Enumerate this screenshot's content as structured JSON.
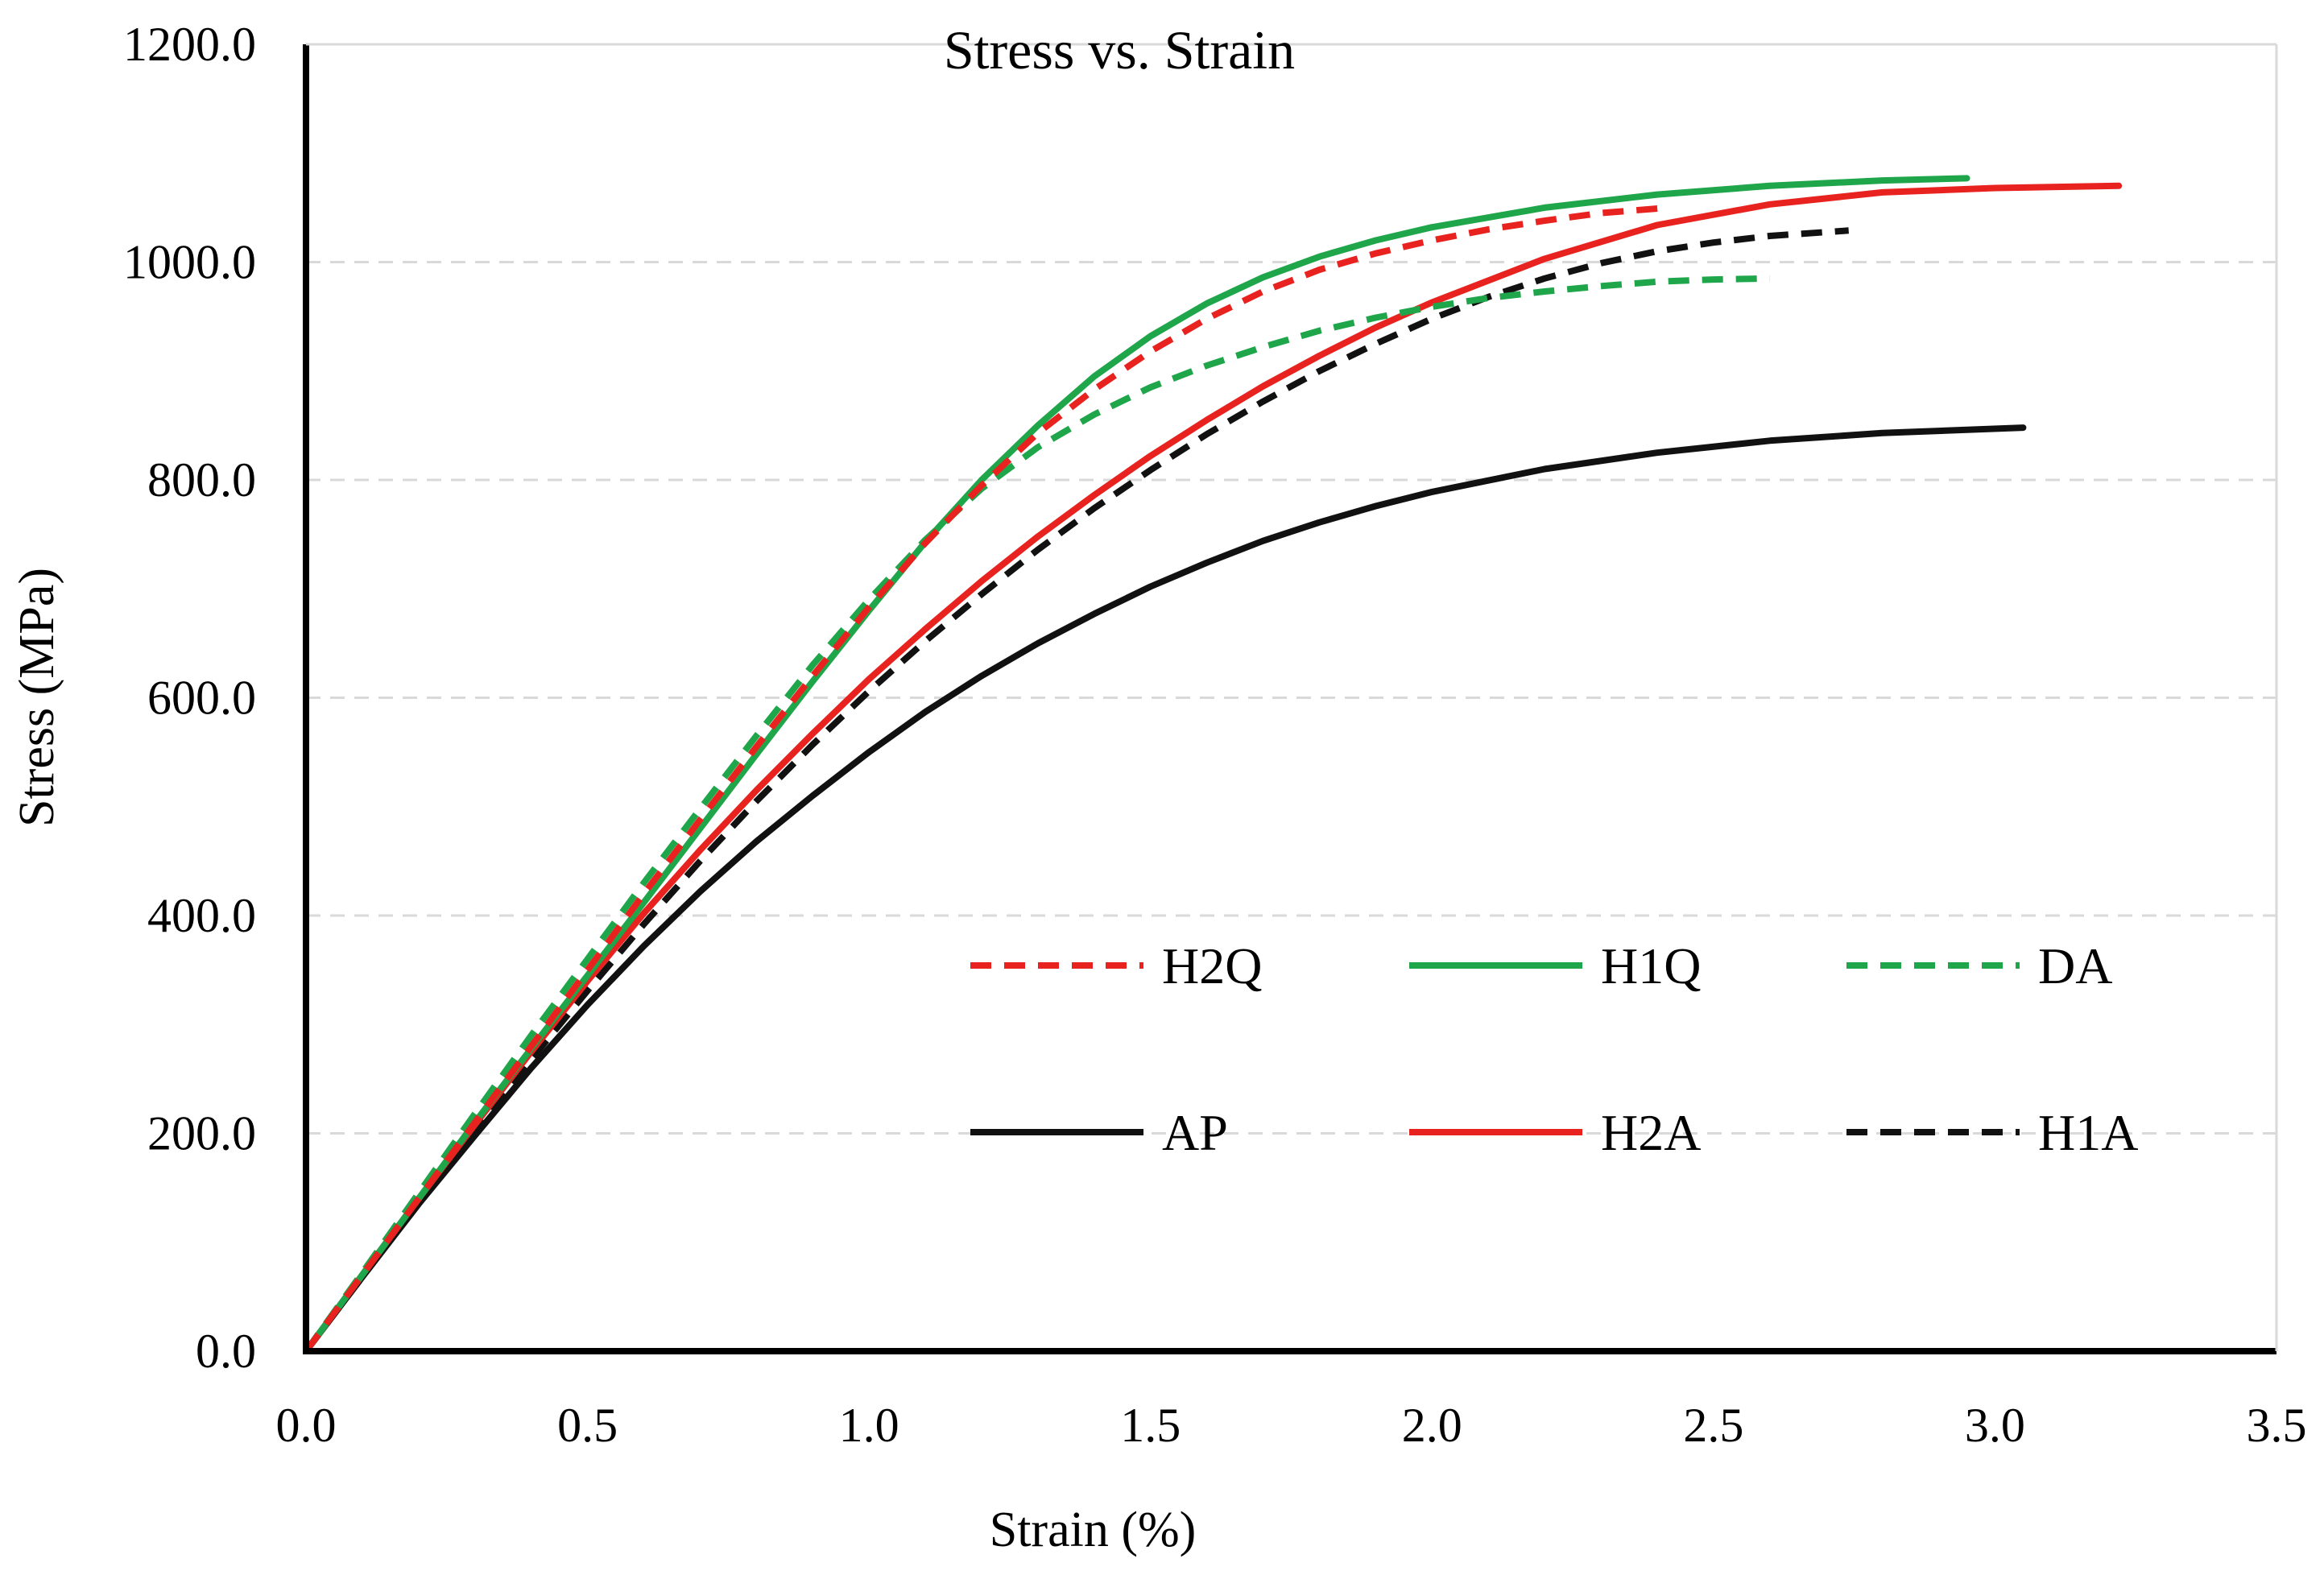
{
  "chart_data": {
    "type": "line",
    "title": "Stress vs. Strain",
    "xlabel": "Strain (%)",
    "ylabel": "Stress (MPa)",
    "xlim": [
      0.0,
      3.5
    ],
    "ylim": [
      0.0,
      1200.0
    ],
    "x_ticks": [
      "0.0",
      "0.5",
      "1.0",
      "1.5",
      "2.0",
      "2.5",
      "3.0",
      "3.5"
    ],
    "y_ticks": [
      "0.0",
      "200.0",
      "400.0",
      "600.0",
      "800.0",
      "1000.0",
      "1200.0"
    ],
    "grid": "horizontal dashed",
    "legend_position": "center-right",
    "series": [
      {
        "name": "H2Q",
        "color": "#e8231f",
        "style": "dashed",
        "points": [
          [
            0,
            0
          ],
          [
            0.1,
            70
          ],
          [
            0.2,
            140
          ],
          [
            0.3,
            210
          ],
          [
            0.4,
            280
          ],
          [
            0.5,
            350
          ],
          [
            0.6,
            420
          ],
          [
            0.7,
            488
          ],
          [
            0.8,
            555
          ],
          [
            0.9,
            620
          ],
          [
            1.0,
            683
          ],
          [
            1.1,
            742
          ],
          [
            1.2,
            795
          ],
          [
            1.3,
            843
          ],
          [
            1.4,
            883
          ],
          [
            1.5,
            918
          ],
          [
            1.6,
            948
          ],
          [
            1.7,
            973
          ],
          [
            1.8,
            993
          ],
          [
            1.9,
            1008
          ],
          [
            2.0,
            1020
          ],
          [
            2.1,
            1030
          ],
          [
            2.2,
            1038
          ],
          [
            2.3,
            1045
          ],
          [
            2.42,
            1050
          ]
        ]
      },
      {
        "name": "H1Q",
        "color": "#1fa64a",
        "style": "solid",
        "points": [
          [
            0,
            0
          ],
          [
            0.1,
            70
          ],
          [
            0.2,
            140
          ],
          [
            0.3,
            210
          ],
          [
            0.4,
            278
          ],
          [
            0.5,
            345
          ],
          [
            0.6,
            412
          ],
          [
            0.7,
            480
          ],
          [
            0.8,
            548
          ],
          [
            0.9,
            615
          ],
          [
            1.0,
            680
          ],
          [
            1.1,
            743
          ],
          [
            1.2,
            800
          ],
          [
            1.3,
            850
          ],
          [
            1.4,
            895
          ],
          [
            1.5,
            932
          ],
          [
            1.6,
            962
          ],
          [
            1.7,
            986
          ],
          [
            1.8,
            1005
          ],
          [
            1.9,
            1020
          ],
          [
            2.0,
            1032
          ],
          [
            2.2,
            1050
          ],
          [
            2.4,
            1062
          ],
          [
            2.6,
            1070
          ],
          [
            2.8,
            1075
          ],
          [
            2.95,
            1077
          ]
        ]
      },
      {
        "name": "DA",
        "color": "#1fa64a",
        "style": "dashed",
        "points": [
          [
            0,
            0
          ],
          [
            0.1,
            72
          ],
          [
            0.2,
            145
          ],
          [
            0.3,
            218
          ],
          [
            0.4,
            290
          ],
          [
            0.5,
            360
          ],
          [
            0.6,
            430
          ],
          [
            0.7,
            498
          ],
          [
            0.8,
            565
          ],
          [
            0.9,
            630
          ],
          [
            1.0,
            690
          ],
          [
            1.1,
            745
          ],
          [
            1.2,
            792
          ],
          [
            1.3,
            830
          ],
          [
            1.4,
            860
          ],
          [
            1.5,
            885
          ],
          [
            1.6,
            905
          ],
          [
            1.7,
            922
          ],
          [
            1.8,
            937
          ],
          [
            1.9,
            949
          ],
          [
            2.0,
            959
          ],
          [
            2.1,
            967
          ],
          [
            2.2,
            973
          ],
          [
            2.3,
            978
          ],
          [
            2.4,
            982
          ],
          [
            2.5,
            984
          ],
          [
            2.6,
            985
          ]
        ]
      },
      {
        "name": "AP",
        "color": "#111111",
        "style": "solid",
        "points": [
          [
            0,
            0
          ],
          [
            0.1,
            68
          ],
          [
            0.2,
            135
          ],
          [
            0.3,
            198
          ],
          [
            0.4,
            260
          ],
          [
            0.5,
            318
          ],
          [
            0.6,
            372
          ],
          [
            0.7,
            422
          ],
          [
            0.8,
            468
          ],
          [
            0.9,
            510
          ],
          [
            1.0,
            550
          ],
          [
            1.1,
            587
          ],
          [
            1.2,
            620
          ],
          [
            1.3,
            650
          ],
          [
            1.4,
            677
          ],
          [
            1.5,
            702
          ],
          [
            1.6,
            724
          ],
          [
            1.7,
            744
          ],
          [
            1.8,
            761
          ],
          [
            1.9,
            776
          ],
          [
            2.0,
            789
          ],
          [
            2.2,
            810
          ],
          [
            2.4,
            825
          ],
          [
            2.6,
            836
          ],
          [
            2.8,
            843
          ],
          [
            3.05,
            848
          ]
        ]
      },
      {
        "name": "H2A",
        "color": "#e8231f",
        "style": "solid",
        "points": [
          [
            0,
            0
          ],
          [
            0.1,
            70
          ],
          [
            0.2,
            140
          ],
          [
            0.3,
            208
          ],
          [
            0.4,
            275
          ],
          [
            0.5,
            340
          ],
          [
            0.6,
            402
          ],
          [
            0.7,
            460
          ],
          [
            0.8,
            515
          ],
          [
            0.9,
            567
          ],
          [
            1.0,
            617
          ],
          [
            1.1,
            663
          ],
          [
            1.2,
            707
          ],
          [
            1.3,
            748
          ],
          [
            1.4,
            786
          ],
          [
            1.5,
            822
          ],
          [
            1.6,
            855
          ],
          [
            1.7,
            886
          ],
          [
            1.8,
            914
          ],
          [
            1.9,
            940
          ],
          [
            2.0,
            963
          ],
          [
            2.2,
            1003
          ],
          [
            2.4,
            1034
          ],
          [
            2.6,
            1053
          ],
          [
            2.8,
            1064
          ],
          [
            3.0,
            1068
          ],
          [
            3.22,
            1070
          ]
        ]
      },
      {
        "name": "H1A",
        "color": "#111111",
        "style": "dashed",
        "points": [
          [
            0,
            0
          ],
          [
            0.1,
            68
          ],
          [
            0.2,
            136
          ],
          [
            0.3,
            203
          ],
          [
            0.4,
            268
          ],
          [
            0.5,
            331
          ],
          [
            0.6,
            392
          ],
          [
            0.7,
            450
          ],
          [
            0.8,
            505
          ],
          [
            0.9,
            557
          ],
          [
            1.0,
            606
          ],
          [
            1.1,
            652
          ],
          [
            1.2,
            695
          ],
          [
            1.3,
            736
          ],
          [
            1.4,
            774
          ],
          [
            1.5,
            809
          ],
          [
            1.6,
            842
          ],
          [
            1.7,
            872
          ],
          [
            1.8,
            900
          ],
          [
            1.9,
            925
          ],
          [
            2.0,
            948
          ],
          [
            2.1,
            968
          ],
          [
            2.2,
            985
          ],
          [
            2.3,
            999
          ],
          [
            2.4,
            1010
          ],
          [
            2.5,
            1018
          ],
          [
            2.6,
            1024
          ],
          [
            2.74,
            1029
          ]
        ]
      }
    ]
  }
}
